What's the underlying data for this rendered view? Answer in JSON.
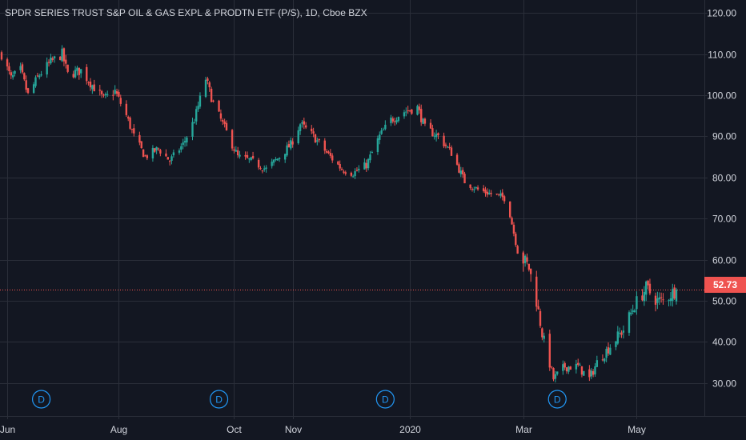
{
  "header": {
    "title": "SPDR SERIES TRUST S&P OIL & GAS EXPL & PRODTN ETF (P/S), 1D, Cboe BZX"
  },
  "colors": {
    "background": "#131722",
    "grid": "#2a2e39",
    "up": "#26a69a",
    "down": "#ef5350",
    "axis_text": "#d1d4dc",
    "last_price_line": "#ef5350",
    "dividend_marker": "#2196f3"
  },
  "chart_data": {
    "type": "candlestick",
    "title": "SPDR SERIES TRUST S&P OIL & GAS EXPL & PRODTN ETF (P/S), 1D, Cboe BZX",
    "interval": "1D",
    "exchange": "Cboe BZX",
    "y_axis_side": "right",
    "ylim": [
      21,
      121
    ],
    "y_ticks": [
      30,
      40,
      50,
      60,
      70,
      80,
      90,
      100,
      110,
      120
    ],
    "y_tick_labels": [
      "30.00",
      "40.00",
      "50.00",
      "60.00",
      "70.00",
      "80.00",
      "90.00",
      "100.00",
      "110.00",
      "120.00"
    ],
    "x_tick_labels": [
      {
        "label": "Jun",
        "date": "2019-06-03"
      },
      {
        "label": "Aug",
        "date": "2019-08-01"
      },
      {
        "label": "Oct",
        "date": "2019-10-01"
      },
      {
        "label": "Nov",
        "date": "2019-11-01"
      },
      {
        "label": "2020",
        "date": "2020-01-02"
      },
      {
        "label": "Mar",
        "date": "2020-03-02"
      },
      {
        "label": "May",
        "date": "2020-05-01"
      }
    ],
    "last_price": 52.73,
    "last_price_label": "52.73",
    "dividend_markers": [
      {
        "label": "D",
        "date": "2019-06-21"
      },
      {
        "label": "D",
        "date": "2019-09-23"
      },
      {
        "label": "D",
        "date": "2019-12-20"
      },
      {
        "label": "D",
        "date": "2020-03-20"
      }
    ],
    "close_path": [
      [
        "2019-05-31",
        110
      ],
      [
        "2019-06-05",
        104
      ],
      [
        "2019-06-10",
        106
      ],
      [
        "2019-06-14",
        100
      ],
      [
        "2019-06-20",
        105
      ],
      [
        "2019-06-26",
        108
      ],
      [
        "2019-07-02",
        110
      ],
      [
        "2019-07-05",
        105
      ],
      [
        "2019-07-12",
        106
      ],
      [
        "2019-07-17",
        103
      ],
      [
        "2019-07-24",
        99
      ],
      [
        "2019-07-30",
        101
      ],
      [
        "2019-08-05",
        95
      ],
      [
        "2019-08-09",
        90
      ],
      [
        "2019-08-15",
        85
      ],
      [
        "2019-08-22",
        87
      ],
      [
        "2019-08-28",
        84
      ],
      [
        "2019-09-04",
        88
      ],
      [
        "2019-09-10",
        94
      ],
      [
        "2019-09-16",
        104
      ],
      [
        "2019-09-20",
        98
      ],
      [
        "2019-09-27",
        91
      ],
      [
        "2019-10-03",
        85
      ],
      [
        "2019-10-10",
        84
      ],
      [
        "2019-10-18",
        82
      ],
      [
        "2019-10-25",
        85
      ],
      [
        "2019-10-31",
        88
      ],
      [
        "2019-11-05",
        93
      ],
      [
        "2019-11-12",
        90
      ],
      [
        "2019-11-19",
        86
      ],
      [
        "2019-11-27",
        82
      ],
      [
        "2019-12-03",
        81
      ],
      [
        "2019-12-10",
        83
      ],
      [
        "2019-12-17",
        90
      ],
      [
        "2019-12-23",
        94
      ],
      [
        "2019-12-30",
        96
      ],
      [
        "2020-01-06",
        97
      ],
      [
        "2020-01-10",
        92
      ],
      [
        "2020-01-17",
        90
      ],
      [
        "2020-01-24",
        86
      ],
      [
        "2020-01-31",
        79
      ],
      [
        "2020-02-07",
        77
      ],
      [
        "2020-02-14",
        76
      ],
      [
        "2020-02-21",
        75
      ],
      [
        "2020-02-24",
        71
      ],
      [
        "2020-02-28",
        62
      ],
      [
        "2020-03-05",
        58
      ],
      [
        "2020-03-09",
        50
      ],
      [
        "2020-03-12",
        42
      ],
      [
        "2020-03-18",
        31
      ],
      [
        "2020-03-24",
        34
      ],
      [
        "2020-03-31",
        34
      ],
      [
        "2020-04-06",
        31
      ],
      [
        "2020-04-10",
        35
      ],
      [
        "2020-04-17",
        39
      ],
      [
        "2020-04-24",
        43
      ],
      [
        "2020-04-30",
        49
      ],
      [
        "2020-05-06",
        53
      ],
      [
        "2020-05-12",
        50
      ],
      [
        "2020-05-15",
        50
      ],
      [
        "2020-05-20",
        52
      ],
      [
        "2020-05-22",
        52.73
      ]
    ]
  }
}
